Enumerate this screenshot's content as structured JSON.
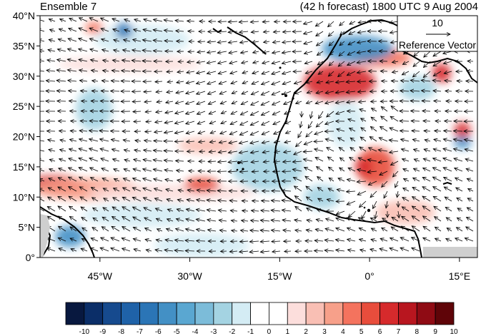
{
  "titles": {
    "left": "Ensemble 7",
    "right": "(42 h forecast) 1800 UTC 9 Aug 2004"
  },
  "map": {
    "lat_range": [
      0,
      40
    ],
    "lon_range": [
      -55,
      18
    ],
    "lat_ticks": [
      {
        "value": 40,
        "label": "40°N"
      },
      {
        "value": 35,
        "label": "35°N"
      },
      {
        "value": 30,
        "label": "30°N"
      },
      {
        "value": 25,
        "label": "25°N"
      },
      {
        "value": 20,
        "label": "20°N"
      },
      {
        "value": 15,
        "label": "15°N"
      },
      {
        "value": 10,
        "label": "10°N"
      },
      {
        "value": 5,
        "label": "5°N"
      },
      {
        "value": 0,
        "label": "0°"
      }
    ],
    "lon_ticks": [
      {
        "value": -45,
        "label": "45°W"
      },
      {
        "value": -30,
        "label": "30°W"
      },
      {
        "value": -15,
        "label": "15°W"
      },
      {
        "value": 0,
        "label": "0°"
      },
      {
        "value": 15,
        "label": "15°E"
      }
    ],
    "reference_vector": {
      "value": "10",
      "label": "Reference Vector"
    }
  },
  "colorbar": {
    "labels": [
      "-10",
      "-9",
      "-8",
      "-7",
      "-6",
      "-5",
      "-4",
      "-3",
      "-2",
      "-1",
      "0",
      "1",
      "2",
      "3",
      "4",
      "5",
      "6",
      "7",
      "8",
      "9",
      "10"
    ],
    "colors": [
      "#08183f",
      "#0b2e68",
      "#164a8e",
      "#1f62a8",
      "#2b75b6",
      "#4390c5",
      "#5aa7d1",
      "#7cbcd9",
      "#a4d3e2",
      "#d4ecf4",
      "#ffffff",
      "#ffffff",
      "#fcdedc",
      "#f9bfb4",
      "#f7a08a",
      "#f4735e",
      "#e84d3c",
      "#d62a2c",
      "#b8161f",
      "#8f0b14",
      "#5f0408"
    ]
  },
  "field_blobs": [
    {
      "lon": -52.5,
      "lat": 12,
      "rx": 5,
      "ry": 1.6,
      "color": "#d62a2c"
    },
    {
      "lon": -47,
      "lat": 11.3,
      "rx": 9,
      "ry": 1.8,
      "color": "#f7a08a"
    },
    {
      "lon": -33,
      "lat": 10.7,
      "rx": 14,
      "ry": 1.4,
      "color": "#fcdedc"
    },
    {
      "lon": -28,
      "lat": 12,
      "rx": 3,
      "ry": 1.2,
      "color": "#e84d3c"
    },
    {
      "lon": -27,
      "lat": 18.5,
      "rx": 5,
      "ry": 1.3,
      "color": "#f9bfb4"
    },
    {
      "lon": -40,
      "lat": 32,
      "rx": 12,
      "ry": 1.3,
      "color": "#fcdedc"
    },
    {
      "lon": -38,
      "lat": 36,
      "rx": 8,
      "ry": 2.5,
      "color": "#d4ecf4"
    },
    {
      "lon": -46,
      "lat": 24.5,
      "rx": 3,
      "ry": 3.5,
      "color": "#a4d3e2"
    },
    {
      "lon": -50,
      "lat": 3.5,
      "rx": 2.5,
      "ry": 1.8,
      "color": "#4390c5"
    },
    {
      "lon": -28,
      "lat": 2,
      "rx": 8,
      "ry": 2,
      "color": "#d4ecf4"
    },
    {
      "lon": -17,
      "lat": 15,
      "rx": 6,
      "ry": 4,
      "color": "#a4d3e2"
    },
    {
      "lon": -38,
      "lat": 7,
      "rx": 10,
      "ry": 2,
      "color": "#d4ecf4"
    },
    {
      "lon": -5,
      "lat": 29,
      "rx": 6,
      "ry": 3,
      "color": "#d62a2c"
    },
    {
      "lon": 2,
      "lat": 33,
      "rx": 5,
      "ry": 1.5,
      "color": "#f4735e"
    },
    {
      "lon": -2,
      "lat": 34.5,
      "rx": 6,
      "ry": 2.2,
      "color": "#4390c5"
    },
    {
      "lon": 1,
      "lat": 15,
      "rx": 3.2,
      "ry": 3.2,
      "color": "#e84d3c"
    },
    {
      "lon": -1,
      "lat": 15,
      "rx": 1.5,
      "ry": 1.5,
      "color": "#d62a2c"
    },
    {
      "lon": 6,
      "lat": 7.5,
      "rx": 5,
      "ry": 2,
      "color": "#f9bfb4"
    },
    {
      "lon": 12,
      "lat": 30.5,
      "rx": 1.6,
      "ry": 1.6,
      "color": "#d62a2c"
    },
    {
      "lon": 15.5,
      "lat": 21,
      "rx": 1.4,
      "ry": 1.4,
      "color": "#d62a2c"
    },
    {
      "lon": 15.5,
      "lat": 19,
      "rx": 1.5,
      "ry": 1,
      "color": "#4390c5"
    },
    {
      "lon": 8,
      "lat": 28,
      "rx": 3,
      "ry": 2,
      "color": "#a4d3e2"
    },
    {
      "lon": -4,
      "lat": 22,
      "rx": 3,
      "ry": 4,
      "color": "#d4ecf4"
    },
    {
      "lon": -8,
      "lat": 10,
      "rx": 3,
      "ry": 2,
      "color": "#a4d3e2"
    },
    {
      "lon": -46,
      "lat": 38,
      "rx": 1.5,
      "ry": 1,
      "color": "#f4735e"
    },
    {
      "lon": -41,
      "lat": 37.5,
      "rx": 1.5,
      "ry": 1.3,
      "color": "#2b75b6"
    }
  ]
}
